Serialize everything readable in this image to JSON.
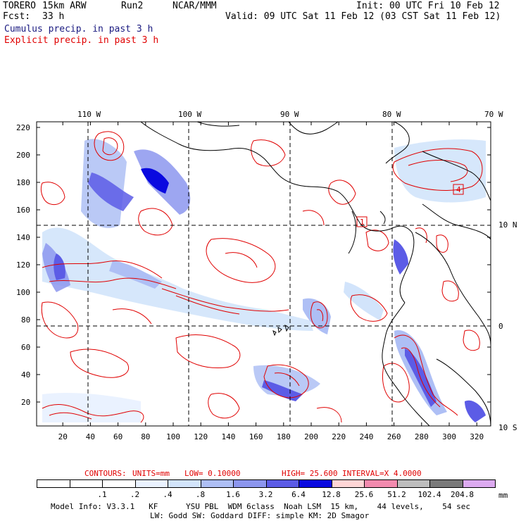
{
  "header": {
    "model": "TORERO",
    "grid": "15km ARW",
    "run": "Run2",
    "org": "NCAR/MMM",
    "init": "Init: 00 UTC Fri 10 Feb 12",
    "fcst_label": "Fcst:",
    "fcst_value": "33 h",
    "valid": "Valid: 09 UTC Sat 11 Feb 12 (03 CST Sat 11 Feb 12)",
    "legend_cumulus": "Cumulus precip. in past 3 h",
    "legend_explicit": "Explicit precip. in past 3 h"
  },
  "colors": {
    "cumulus_text": "#1a1a80",
    "explicit_contour": "#e00000"
  },
  "map": {
    "top_lon_labels": [
      "110 W",
      "100 W",
      "90 W",
      "80 W",
      "70 W"
    ],
    "right_lat_labels": [
      "10 N",
      "0",
      "10 S"
    ],
    "y_ticks": [
      "20",
      "40",
      "60",
      "80",
      "100",
      "120",
      "140",
      "160",
      "180",
      "200",
      "220"
    ],
    "x_ticks": [
      "20",
      "40",
      "60",
      "80",
      "100",
      "120",
      "140",
      "160",
      "180",
      "200",
      "220",
      "240",
      "260",
      "280",
      "300",
      "320"
    ],
    "marker_labels": [
      "4",
      "1"
    ]
  },
  "contours_info": {
    "title": "CONTOURS:",
    "units": "UNITS=mm",
    "low": "LOW= 0.10000",
    "high": "HIGH= 25.600",
    "interval": "INTERVAL=X 4.0000"
  },
  "colorbar": {
    "labels": [
      ".1",
      ".2",
      ".4",
      ".8",
      "1.6",
      "3.2",
      "6.4",
      "12.8",
      "25.6",
      "51.2",
      "102.4",
      "204.8"
    ],
    "unit": "mm",
    "colors": [
      "#ffffff",
      "#ffffff",
      "#ffffff",
      "#eaf2ff",
      "#d2e4fb",
      "#aebff5",
      "#8c96ee",
      "#5c5ce6",
      "#0a0ae0",
      "#ffd6d6",
      "#f28aae",
      "#bdbdbd",
      "#7a7a7a",
      "#dcaaf0"
    ]
  },
  "footer": {
    "line1": "Model Info: V3.3.1   KF      YSU PBL  WDM 6class  Noah LSM  15 km,    44 levels,    54 sec",
    "line2": "LW: Godd SW: Goddard DIFF: simple KM: 2D Smagor"
  }
}
